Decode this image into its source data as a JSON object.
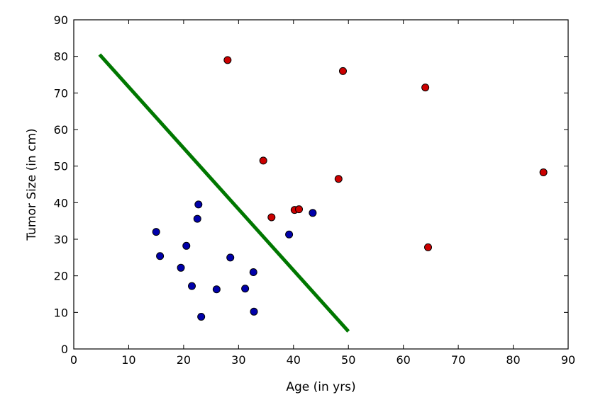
{
  "chart_data": {
    "type": "scatter",
    "title": "",
    "xlabel": "Age (in yrs)",
    "ylabel": "Tumor Size (in cm)",
    "xlim": [
      0,
      90
    ],
    "ylim": [
      0,
      90
    ],
    "xticks": [
      "0",
      "10",
      "20",
      "30",
      "40",
      "50",
      "60",
      "70",
      "80",
      "90"
    ],
    "yticks": [
      "0",
      "10",
      "20",
      "30",
      "40",
      "50",
      "60",
      "70",
      "80",
      "90"
    ],
    "grid": false,
    "legend": "none",
    "series": [
      {
        "color": "#cc0000",
        "points": [
          {
            "x": 28,
            "y": 79
          },
          {
            "x": 49,
            "y": 76
          },
          {
            "x": 64,
            "y": 71.5
          },
          {
            "x": 34.5,
            "y": 51.5
          },
          {
            "x": 48.2,
            "y": 46.5
          },
          {
            "x": 85.5,
            "y": 48.3
          },
          {
            "x": 36,
            "y": 36
          },
          {
            "x": 40.2,
            "y": 38
          },
          {
            "x": 41,
            "y": 38.2
          },
          {
            "x": 64.5,
            "y": 27.8
          }
        ]
      },
      {
        "color": "#0000aa",
        "points": [
          {
            "x": 15,
            "y": 32
          },
          {
            "x": 15.7,
            "y": 25.4
          },
          {
            "x": 20.5,
            "y": 28.2
          },
          {
            "x": 19.5,
            "y": 22.2
          },
          {
            "x": 22.7,
            "y": 39.5
          },
          {
            "x": 22.5,
            "y": 35.6
          },
          {
            "x": 21.5,
            "y": 17.2
          },
          {
            "x": 23.2,
            "y": 8.8
          },
          {
            "x": 26,
            "y": 16.3
          },
          {
            "x": 28.5,
            "y": 25
          },
          {
            "x": 31.2,
            "y": 16.5
          },
          {
            "x": 32.7,
            "y": 21
          },
          {
            "x": 32.8,
            "y": 10.2
          },
          {
            "x": 39.2,
            "y": 31.3
          },
          {
            "x": 43.5,
            "y": 37.2
          }
        ]
      }
    ],
    "lines": [
      {
        "color": "#007700",
        "points": [
          {
            "x": 4.7,
            "y": 80.5
          },
          {
            "x": 50,
            "y": 4.8
          }
        ]
      }
    ]
  }
}
